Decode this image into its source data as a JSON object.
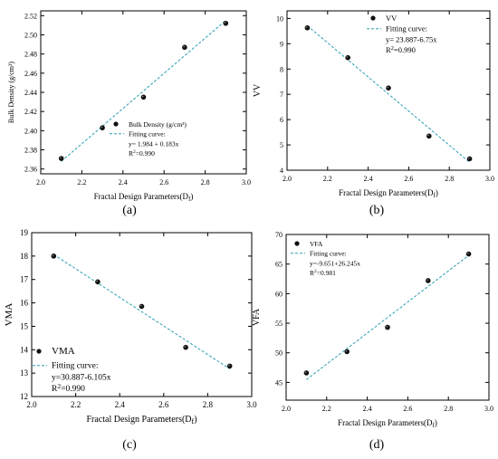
{
  "chart_data": [
    {
      "type": "scatter",
      "panel_label": "(a)",
      "xlabel": "Fractal Design Parameters(D",
      "xlabel_sub": "f",
      "xlabel_close": ")",
      "ylabel": "Bulk Density (g/cm³)",
      "xlim": [
        2.0,
        3.0
      ],
      "ylim": [
        2.355,
        2.525
      ],
      "xticks": [
        "2.0",
        "2.2",
        "2.4",
        "2.6",
        "2.8",
        "3.0"
      ],
      "yticks": [
        "2.36",
        "2.38",
        "2.40",
        "2.42",
        "2.44",
        "2.46",
        "2.48",
        "2.50",
        "2.52"
      ],
      "series": [
        {
          "name": "Bulk Density (g/cm³)",
          "x": [
            2.1,
            2.3,
            2.5,
            2.7,
            2.9
          ],
          "y": [
            2.371,
            2.403,
            2.435,
            2.487,
            2.512
          ]
        }
      ],
      "fit": {
        "name": "Fitting curve:",
        "equation": "y= 1.984 + 0.183x",
        "r2": "=0.990",
        "x": [
          2.1,
          2.9
        ],
        "y": [
          2.368,
          2.515
        ]
      },
      "legend_position": "bottom-right"
    },
    {
      "type": "scatter",
      "panel_label": "(b)",
      "xlabel": "Fractal Design Parameters(D",
      "xlabel_sub": "f",
      "xlabel_close": ")",
      "ylabel": "VV",
      "xlim": [
        2.0,
        3.0
      ],
      "ylim": [
        4.0,
        10.3
      ],
      "xticks": [
        "2.0",
        "2.2",
        "2.4",
        "2.6",
        "2.8",
        "3.0"
      ],
      "yticks": [
        "4",
        "5",
        "6",
        "7",
        "8",
        "9",
        "10"
      ],
      "series": [
        {
          "name": "VV",
          "x": [
            2.1,
            2.3,
            2.5,
            2.7,
            2.9
          ],
          "y": [
            9.63,
            8.45,
            7.25,
            5.35,
            4.45
          ]
        }
      ],
      "fit": {
        "name": "Fitting curve:",
        "equation": "y= 23.887-6.75x",
        "r2": "=0.990",
        "x": [
          2.1,
          2.9
        ],
        "y": [
          9.712,
          4.312
        ]
      },
      "legend_position": "top-right"
    },
    {
      "type": "scatter",
      "panel_label": "(c)",
      "xlabel": "Fractal Design Parameters(D",
      "xlabel_sub": "f",
      "xlabel_close": ")",
      "ylabel": "VMA",
      "xlim": [
        2.0,
        3.0
      ],
      "ylim": [
        12.0,
        19.0
      ],
      "xticks": [
        "2.0",
        "2.2",
        "2.4",
        "2.6",
        "2.8",
        "3.0"
      ],
      "yticks": [
        "12",
        "13",
        "14",
        "15",
        "16",
        "17",
        "18",
        "19"
      ],
      "series": [
        {
          "name": "VMA",
          "x": [
            2.1,
            2.3,
            2.5,
            2.7,
            2.9
          ],
          "y": [
            18.0,
            16.9,
            15.85,
            14.1,
            13.3
          ]
        }
      ],
      "fit": {
        "name": "Fitting curve:",
        "equation": "y=30.887-6.105x",
        "r2": "=0.990",
        "x": [
          2.1,
          2.9
        ],
        "y": [
          18.067,
          13.183
        ]
      },
      "legend_position": "bottom-left"
    },
    {
      "type": "scatter",
      "panel_label": "(d)",
      "xlabel": "Fractal Design Parameters(D",
      "xlabel_sub": "f",
      "xlabel_close": ")",
      "ylabel": "VFA",
      "xlim": [
        2.0,
        3.0
      ],
      "ylim": [
        42.0,
        70.0
      ],
      "xticks": [
        "2.0",
        "2.2",
        "2.4",
        "2.6",
        "2.8",
        "3.0"
      ],
      "yticks": [
        "45",
        "50",
        "55",
        "60",
        "65",
        "70"
      ],
      "series": [
        {
          "name": "VFA",
          "x": [
            2.1,
            2.3,
            2.5,
            2.7,
            2.9
          ],
          "y": [
            46.6,
            50.2,
            54.3,
            62.2,
            66.7
          ]
        }
      ],
      "fit": {
        "name": "Fitting curve:",
        "equation": "y=-9.651+26.245x",
        "r2": "=0.981",
        "x": [
          2.1,
          2.9
        ],
        "y": [
          45.464,
          66.46
        ]
      },
      "legend_position": "top-left"
    }
  ],
  "colors": {
    "points": "#111111",
    "fit_line": "#2a9fb0",
    "axes": "#000000"
  }
}
